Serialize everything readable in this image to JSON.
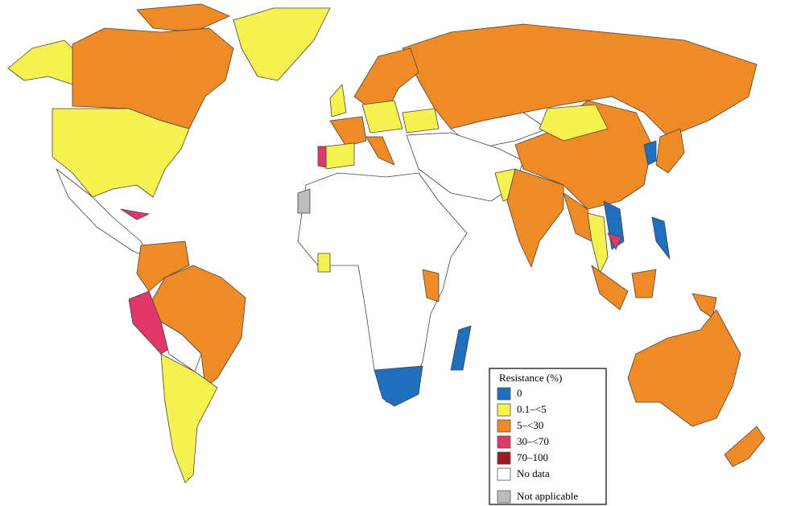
{
  "legend": {
    "title": "Resistance (%)",
    "items": [
      {
        "label": "0",
        "color": "#1f6fbf"
      },
      {
        "label": "0.1–<5",
        "color": "#f5f14f"
      },
      {
        "label": "5–<30",
        "color": "#f08a24"
      },
      {
        "label": "30–<70",
        "color": "#e0386a"
      },
      {
        "label": "70–100",
        "color": "#9b1b1b"
      },
      {
        "label": "No data",
        "color": "#ffffff"
      },
      {
        "label": "Not applicable",
        "color": "#bdbdbd"
      }
    ]
  }
}
